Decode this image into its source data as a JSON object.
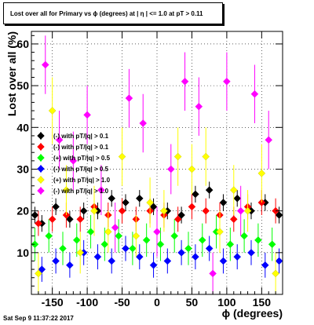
{
  "title": "Lost over all for Primary vs ϕ (degrees) at | η | <= 1.0 at pT > 0.11",
  "footer": "Sat Sep  9 11:37:22 2017",
  "chart_data": {
    "type": "scatter",
    "title": "Lost over all for Primary vs ϕ (degrees) at | η | <= 1.0 at pT > 0.11",
    "xlabel": "ϕ (degrees)",
    "ylabel": "Lost over all (%)",
    "xlim": [
      -180,
      180
    ],
    "ylim": [
      0,
      63
    ],
    "xticks": [
      -150,
      -100,
      -50,
      0,
      50,
      100,
      150
    ],
    "yticks": [
      10,
      20,
      30,
      40,
      50,
      60
    ],
    "grid": true,
    "legend_position": "left-middle",
    "series": [
      {
        "name": "(-) with pT/|q| > 0.1",
        "color": "#000000",
        "x": [
          -175,
          -165,
          -145,
          -125,
          -105,
          -85,
          -65,
          -45,
          -25,
          -5,
          15,
          35,
          55,
          75,
          95,
          115,
          135,
          155,
          175
        ],
        "y": [
          19,
          17,
          21,
          18,
          20,
          20,
          23,
          22,
          23,
          21,
          20,
          19,
          24,
          25,
          22,
          23,
          20,
          22,
          19
        ],
        "err": [
          2,
          2,
          2,
          2,
          2,
          2,
          2,
          2,
          2,
          2,
          2,
          2,
          2,
          2,
          2,
          2,
          2,
          2,
          2
        ]
      },
      {
        "name": "(-) with pT/|q| > 0.1",
        "color": "#ff0000",
        "x": [
          -170,
          -150,
          -130,
          -110,
          -90,
          -70,
          -50,
          -30,
          -10,
          10,
          30,
          50,
          70,
          90,
          110,
          130,
          150,
          170
        ],
        "y": [
          17,
          18,
          19,
          18,
          21,
          19,
          20,
          18,
          20,
          19,
          18,
          21,
          20,
          19,
          18,
          21,
          22,
          20
        ],
        "err": [
          3,
          3,
          3,
          3,
          3,
          3,
          3,
          3,
          3,
          3,
          3,
          3,
          3,
          3,
          3,
          3,
          3,
          3
        ]
      },
      {
        "name": "(+) with pT/|q| > 0.5",
        "color": "#00ff00",
        "x": [
          -175,
          -155,
          -135,
          -115,
          -95,
          -75,
          -55,
          -35,
          -15,
          5,
          25,
          45,
          65,
          85,
          105,
          125,
          145,
          165
        ],
        "y": [
          12,
          14,
          11,
          13,
          15,
          12,
          14,
          11,
          13,
          12,
          14,
          11,
          13,
          15,
          12,
          14,
          13,
          12
        ],
        "err": [
          4,
          4,
          4,
          4,
          4,
          4,
          4,
          4,
          4,
          4,
          4,
          4,
          4,
          4,
          4,
          4,
          4,
          4
        ]
      },
      {
        "name": "(-) with pT/|q| > 0.5",
        "color": "#0000ff",
        "x": [
          -165,
          -145,
          -125,
          -105,
          -85,
          -65,
          -45,
          -25,
          -5,
          15,
          35,
          55,
          75,
          95,
          115,
          135,
          155,
          175
        ],
        "y": [
          6,
          8,
          7,
          10,
          9,
          8,
          11,
          9,
          7,
          8,
          10,
          9,
          11,
          8,
          9,
          10,
          7,
          8
        ],
        "err": [
          3,
          3,
          3,
          3,
          3,
          3,
          3,
          3,
          3,
          3,
          3,
          3,
          3,
          3,
          3,
          3,
          3,
          3
        ]
      },
      {
        "name": "(+) with pT/|q| > 1.0",
        "color": "#ffff00",
        "x": [
          -170,
          -150,
          -130,
          -110,
          -90,
          -70,
          -50,
          -30,
          -10,
          10,
          30,
          50,
          70,
          90,
          110,
          130,
          150,
          170
        ],
        "y": [
          5,
          44,
          25,
          10,
          20,
          15,
          33,
          14,
          22,
          20,
          33,
          30,
          33,
          15,
          25,
          20,
          29,
          5
        ],
        "err": [
          5,
          8,
          6,
          5,
          6,
          5,
          7,
          5,
          6,
          5,
          7,
          6,
          7,
          5,
          6,
          5,
          7,
          5
        ]
      },
      {
        "name": "(-) with pT/|q| > 1.0",
        "color": "#ff00ff",
        "x": [
          -160,
          -140,
          -120,
          -100,
          -80,
          -60,
          -40,
          -20,
          0,
          20,
          40,
          60,
          80,
          100,
          120,
          140,
          160
        ],
        "y": [
          55,
          37,
          32,
          43,
          25,
          16,
          47,
          41,
          15,
          30,
          51,
          45,
          5,
          51,
          20,
          48,
          37
        ],
        "err": [
          7,
          7,
          7,
          7,
          6,
          6,
          7,
          7,
          6,
          6,
          7,
          7,
          5,
          7,
          6,
          7,
          7
        ]
      }
    ]
  }
}
